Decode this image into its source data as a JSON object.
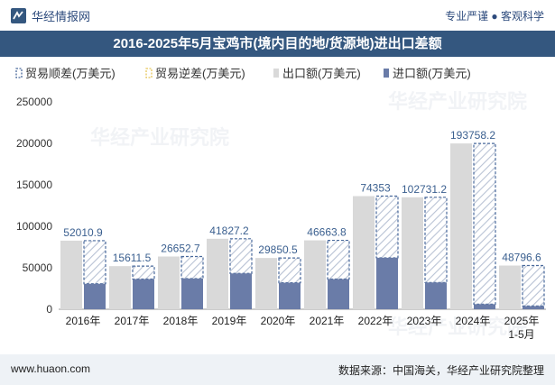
{
  "header": {
    "brand": "华经情报网",
    "tagline": "专业严谨 ● 客观科学"
  },
  "footer": {
    "website": "www.huaon.com",
    "source": "数据来源：中国海关，华经产业研究院整理"
  },
  "watermark": "华经产业研究院",
  "colors": {
    "title_bg": "#34577f",
    "export": "#d9d9d9",
    "import": "#6a7ca8",
    "surplus": "#4a6a9c",
    "deficit": "#e6c65a",
    "label": "#3a5f8f"
  },
  "chart_data": {
    "type": "bar",
    "title": "2016-2025年5月宝鸡市(境内目的地/货源地)进出口差额",
    "legend": [
      "贸易顺差(万美元)",
      "贸易逆差(万美元)",
      "出口额(万美元)",
      "进口额(万美元)"
    ],
    "categories": [
      "2016年",
      "2017年",
      "2018年",
      "2019年",
      "2020年",
      "2021年",
      "2022年",
      "2023年",
      "2024年",
      "2025年\n1-5月"
    ],
    "series": [
      {
        "name": "出口额(万美元)",
        "values": [
          82700,
          52000,
          63600,
          85000,
          61800,
          83100,
          136400,
          135000,
          199900,
          52700
        ]
      },
      {
        "name": "进口额(万美元)",
        "values": [
          30689.1,
          36388.5,
          36947.3,
          43172.8,
          31949.5,
          36436.2,
          62047,
          32268.8,
          6141.8,
          3903.4
        ]
      },
      {
        "name": "贸易顺差(万美元)",
        "values": [
          52010.9,
          15611.5,
          26652.7,
          41827.2,
          29850.5,
          46663.8,
          74353,
          102731.2,
          193758.2,
          48796.6
        ]
      }
    ],
    "ylim": [
      0,
      250000
    ],
    "yticks": [
      0,
      50000,
      100000,
      150000,
      200000,
      250000
    ],
    "xlabel": "",
    "ylabel": ""
  }
}
